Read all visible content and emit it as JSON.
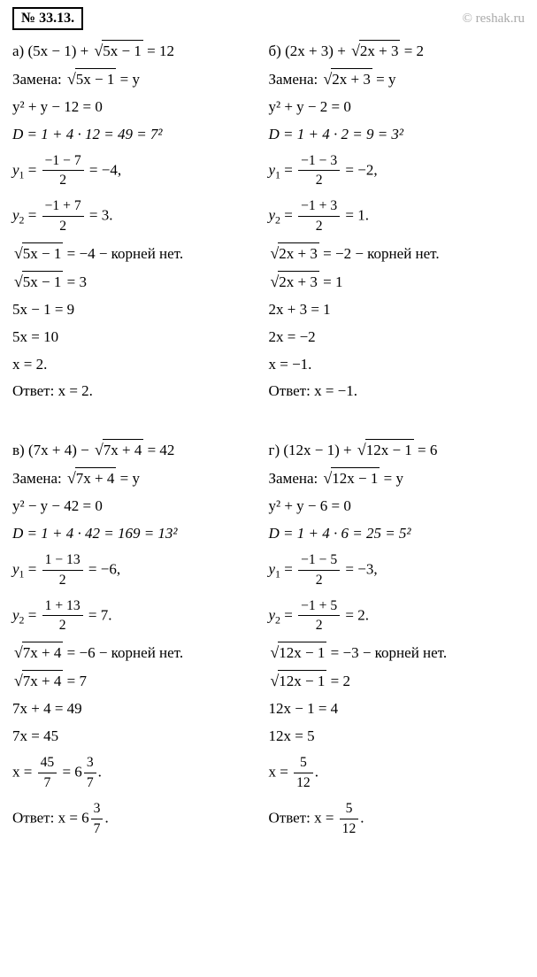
{
  "header": {
    "problem_number": "№ 33.13.",
    "copyright": "© reshak.ru"
  },
  "a": {
    "label": "а)",
    "eq": "(5x − 1) + ",
    "rad": "5x − 1",
    "eq_end": " = 12",
    "sub_label": "Замена: ",
    "sub_rad": "5x − 1",
    "sub_end": " = y",
    "quad": "y² + y − 12 = 0",
    "D": "D = 1 + 4 · 12 = 49 = 7²",
    "y1_num": "−1 − 7",
    "y1_den": "2",
    "y1_val": " = −4,",
    "y2_num": "−1 + 7",
    "y2_den": "2",
    "y2_val": " = 3.",
    "noroot_rad": "5x − 1",
    "noroot_txt": " = −4 − корней нет.",
    "solve_rad": "5x − 1",
    "solve_eq": " = 3",
    "s1": "5x − 1 = 9",
    "s2": "5x = 10",
    "s3": "x = 2.",
    "answer": "Ответ: x = 2."
  },
  "b": {
    "label": "б)",
    "eq": "(2x + 3) + ",
    "rad": "2x + 3",
    "eq_end": " = 2",
    "sub_label": "Замена: ",
    "sub_rad": "2x + 3",
    "sub_end": " = y",
    "quad": "y² + y − 2 = 0",
    "D": "D = 1 + 4 · 2 = 9 = 3²",
    "y1_num": "−1 − 3",
    "y1_den": "2",
    "y1_val": " = −2,",
    "y2_num": "−1 + 3",
    "y2_den": "2",
    "y2_val": " = 1.",
    "noroot_rad": "2x + 3",
    "noroot_txt": " = −2 − корней нет.",
    "solve_rad": "2x + 3",
    "solve_eq": " = 1",
    "s1": "2x + 3 = 1",
    "s2": "2x = −2",
    "s3": "x = −1.",
    "answer": "Ответ: x = −1."
  },
  "v": {
    "label": "в)",
    "eq": "(7x + 4) − ",
    "rad": "7x + 4",
    "eq_end": " = 42",
    "sub_label": "Замена: ",
    "sub_rad": "7x + 4",
    "sub_end": " = y",
    "quad": "y² − y − 42 = 0",
    "D": "D = 1 + 4 · 42 = 169 = 13²",
    "y1_num": "1 − 13",
    "y1_den": "2",
    "y1_val": " = −6,",
    "y2_num": "1 + 13",
    "y2_den": "2",
    "y2_val": " = 7.",
    "noroot_rad": "7x + 4",
    "noroot_txt": " = −6 − корней нет.",
    "solve_rad": "7x + 4",
    "solve_eq": " = 7",
    "s1": "7x + 4 = 49",
    "s2": "7x = 45",
    "s3_pre": "x = ",
    "s3_num": "45",
    "s3_den": "7",
    "s3_mid": " = 6",
    "s3_mnum": "3",
    "s3_mden": "7",
    "s3_end": ".",
    "answer_pre": "Ответ: x = 6",
    "answer_mnum": "3",
    "answer_mden": "7",
    "answer_end": "."
  },
  "g": {
    "label": "г)",
    "eq": "(12x − 1) + ",
    "rad": "12x − 1",
    "eq_end": " = 6",
    "sub_label": "Замена: ",
    "sub_rad": "12x − 1",
    "sub_end": " = y",
    "quad": "y² + y − 6 = 0",
    "D": "D = 1 + 4 · 6 = 25 = 5²",
    "y1_num": "−1 − 5",
    "y1_den": "2",
    "y1_val": " = −3,",
    "y2_num": "−1 + 5",
    "y2_den": "2",
    "y2_val": " = 2.",
    "noroot_rad": "12x − 1",
    "noroot_txt": " = −3 − корней нет.",
    "solve_rad": "12x − 1",
    "solve_eq": " = 2",
    "s1": "12x − 1 = 4",
    "s2": "12x = 5",
    "s3_pre": "x = ",
    "s3_num": "5",
    "s3_den": "12",
    "s3_end": ".",
    "answer_pre": "Ответ: x = ",
    "answer_num": "5",
    "answer_den": "12",
    "answer_end": "."
  }
}
